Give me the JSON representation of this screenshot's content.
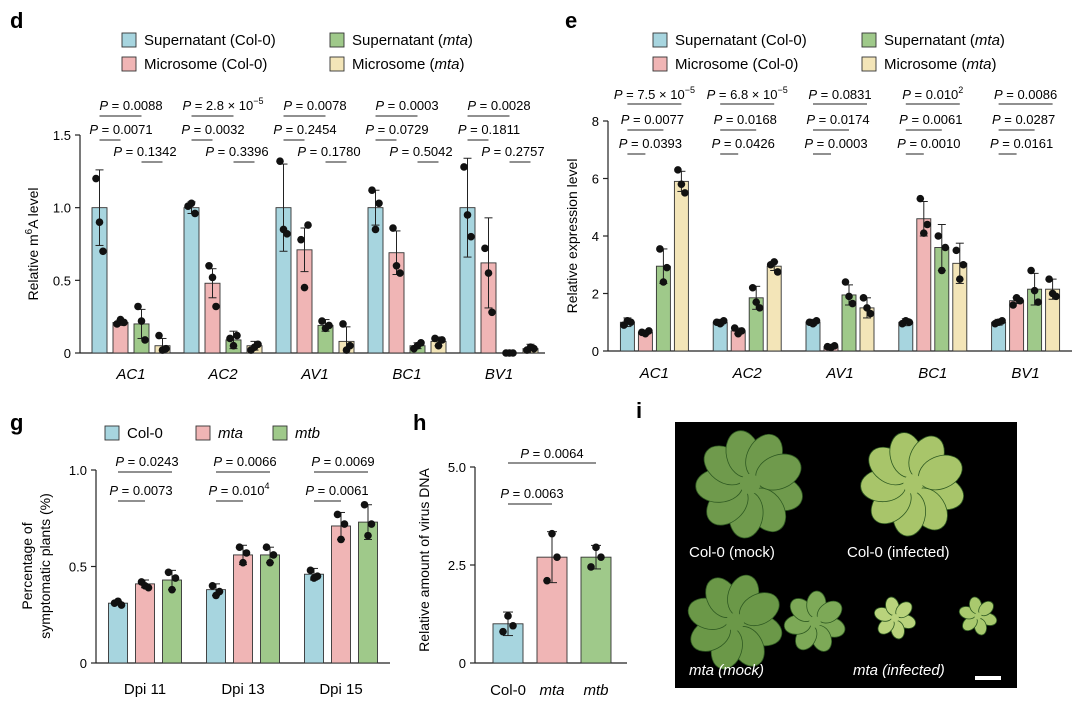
{
  "colors": {
    "supernatant_col0": "#a7d5df",
    "microsome_col0": "#f0b5b5",
    "supernatant_mta": "#9fc98a",
    "microsome_mta": "#f3e5b8",
    "col0": "#a7d5df",
    "mta": "#f0b5b5",
    "mtb": "#9fc98a",
    "photo_background": "#000000"
  },
  "chart_data": [
    {
      "panel": "d",
      "type": "bar",
      "ylabel": "Relative m6A level",
      "ylim": [
        0,
        1.5
      ],
      "yticks": [
        "0",
        "0.5",
        "1.0",
        "1.5"
      ],
      "categories": [
        "AC1",
        "AC2",
        "AV1",
        "BC1",
        "BV1"
      ],
      "legend": [
        "Supernatant (Col-0)",
        "Supernatant (mta)",
        "Microsome (Col-0)",
        "Microsome (mta)"
      ],
      "series": [
        {
          "name": "Supernatant (Col-0)",
          "values": [
            1.0,
            1.0,
            1.0,
            1.0,
            1.0
          ],
          "err": [
            0.26,
            0.04,
            0.3,
            0.12,
            0.34
          ],
          "points": [
            [
              1.2,
              0.9,
              0.7
            ],
            [
              1.01,
              1.03,
              0.96
            ],
            [
              1.32,
              0.85,
              0.82
            ],
            [
              1.12,
              0.85,
              1.03
            ],
            [
              1.28,
              0.95,
              0.8
            ]
          ]
        },
        {
          "name": "Microsome (Col-0)",
          "values": [
            0.21,
            0.48,
            0.71,
            0.69,
            0.62
          ],
          "err": [
            0.02,
            0.1,
            0.15,
            0.15,
            0.31
          ],
          "points": [
            [
              0.2,
              0.23,
              0.21
            ],
            [
              0.6,
              0.52,
              0.32
            ],
            [
              0.78,
              0.45,
              0.88
            ],
            [
              0.86,
              0.6,
              0.55
            ],
            [
              0.72,
              0.55,
              0.28
            ]
          ]
        },
        {
          "name": "Supernatant (mta)",
          "values": [
            0.2,
            0.09,
            0.19,
            0.05,
            0.0
          ],
          "err": [
            0.1,
            0.06,
            0.04,
            0.02,
            0.0
          ],
          "points": [
            [
              0.32,
              0.22,
              0.09
            ],
            [
              0.1,
              0.05,
              0.12
            ],
            [
              0.22,
              0.17,
              0.19
            ],
            [
              0.03,
              0.05,
              0.07
            ],
            [
              0.0,
              0.0,
              0.0
            ]
          ]
        },
        {
          "name": "Microsome (mta)",
          "values": [
            0.05,
            0.05,
            0.08,
            0.08,
            0.03
          ],
          "err": [
            0.05,
            0.03,
            0.1,
            0.03,
            0.03
          ],
          "points": [
            [
              0.12,
              0.02,
              0.03
            ],
            [
              0.02,
              0.04,
              0.06
            ],
            [
              0.2,
              0.02,
              0.05
            ],
            [
              0.1,
              0.05,
              0.09
            ],
            [
              0.02,
              0.04,
              0.03
            ]
          ]
        }
      ],
      "annotations": [
        [
          "P = 0.0088",
          "P = 0.0071",
          "P = 0.1342"
        ],
        [
          "P = 2.8 × 10⁻⁵",
          "P = 0.0032",
          "P = 0.3396"
        ],
        [
          "P = 0.0078",
          "P = 0.2454",
          "P = 0.1780"
        ],
        [
          "P = 0.0003",
          "P = 0.0729",
          "P = 0.5042"
        ],
        [
          "P = 0.0028",
          "P = 0.1811",
          "P = 0.2757"
        ]
      ]
    },
    {
      "panel": "e",
      "type": "bar",
      "ylabel": "Relative expression level",
      "ylim": [
        0,
        8
      ],
      "yticks": [
        "0",
        "2",
        "4",
        "6",
        "8"
      ],
      "categories": [
        "AC1",
        "AC2",
        "AV1",
        "BC1",
        "BV1"
      ],
      "legend": [
        "Supernatant (Col-0)",
        "Supernatant (mta)",
        "Microsome (Col-0)",
        "Microsome (mta)"
      ],
      "series": [
        {
          "name": "Supernatant (Col-0)",
          "values": [
            1.0,
            1.0,
            1.0,
            1.0,
            1.0
          ],
          "err": [
            0.15,
            0.1,
            0.1,
            0.12,
            0.1
          ],
          "points": [
            [
              0.9,
              1.05,
              1.0
            ],
            [
              1.0,
              0.95,
              1.05
            ],
            [
              1.0,
              0.95,
              1.05
            ],
            [
              0.95,
              1.05,
              1.0
            ],
            [
              0.95,
              1.0,
              1.05
            ]
          ]
        },
        {
          "name": "Microsome (Col-0)",
          "values": [
            0.65,
            0.7,
            0.15,
            4.6,
            1.75
          ],
          "err": [
            0.08,
            0.1,
            0.05,
            0.6,
            0.1
          ],
          "points": [
            [
              0.65,
              0.6,
              0.7
            ],
            [
              0.8,
              0.6,
              0.7
            ],
            [
              0.15,
              0.12,
              0.18
            ],
            [
              5.3,
              4.1,
              4.4
            ],
            [
              1.6,
              1.85,
              1.75
            ]
          ]
        },
        {
          "name": "Supernatant (mta)",
          "values": [
            2.95,
            1.85,
            1.95,
            3.6,
            2.15
          ],
          "err": [
            0.6,
            0.4,
            0.35,
            0.8,
            0.55
          ],
          "points": [
            [
              3.55,
              2.4,
              2.9
            ],
            [
              2.2,
              1.7,
              1.5
            ],
            [
              2.4,
              1.9,
              1.65
            ],
            [
              4.0,
              2.8,
              3.6
            ],
            [
              2.8,
              2.1,
              1.7
            ]
          ]
        },
        {
          "name": "Microsome (mta)",
          "values": [
            5.9,
            2.95,
            1.5,
            3.05,
            2.15
          ],
          "err": [
            0.35,
            0.15,
            0.35,
            0.7,
            0.35
          ],
          "points": [
            [
              6.3,
              5.8,
              5.5
            ],
            [
              3.0,
              3.1,
              2.75
            ],
            [
              1.85,
              1.5,
              1.3
            ],
            [
              3.5,
              2.5,
              3.0
            ],
            [
              2.5,
              2.0,
              1.9
            ]
          ]
        }
      ],
      "annotations": [
        [
          "P = 7.5 × 10⁻⁵",
          "P = 0.0077",
          "P = 0.0393"
        ],
        [
          "P = 6.8 × 10⁻⁵",
          "P = 0.0168",
          "P = 0.0426"
        ],
        [
          "P = 0.0831",
          "P = 0.0174",
          "P = 0.0003"
        ],
        [
          "P = 0.0102",
          "P = 0.0061",
          "P = 0.0010"
        ],
        [
          "P = 0.0086",
          "P = 0.0287",
          "P = 0.0161"
        ]
      ]
    },
    {
      "panel": "g",
      "type": "bar",
      "ylabel": "Percentage of symptomatic plants (%)",
      "ylabel_lines": [
        "Percentage of",
        "symptomatic plants (%)"
      ],
      "ylim": [
        0,
        1.0
      ],
      "yticks": [
        "0",
        "0.5",
        "1.0"
      ],
      "categories": [
        "Dpi 11",
        "Dpi 13",
        "Dpi 15"
      ],
      "legend": [
        "Col-0",
        "mta",
        "mtb"
      ],
      "series": [
        {
          "name": "Col-0",
          "values": [
            0.31,
            0.38,
            0.46
          ],
          "err": [
            0.01,
            0.03,
            0.03
          ],
          "points": [
            [
              0.31,
              0.32,
              0.3
            ],
            [
              0.4,
              0.35,
              0.37
            ],
            [
              0.48,
              0.44,
              0.45
            ]
          ]
        },
        {
          "name": "mta",
          "values": [
            0.41,
            0.56,
            0.71
          ],
          "err": [
            0.02,
            0.05,
            0.07
          ],
          "points": [
            [
              0.42,
              0.4,
              0.39
            ],
            [
              0.6,
              0.52,
              0.57
            ],
            [
              0.77,
              0.64,
              0.72
            ]
          ]
        },
        {
          "name": "mtb",
          "values": [
            0.43,
            0.56,
            0.73
          ],
          "err": [
            0.05,
            0.04,
            0.09
          ],
          "points": [
            [
              0.47,
              0.38,
              0.44
            ],
            [
              0.6,
              0.52,
              0.56
            ],
            [
              0.82,
              0.66,
              0.72
            ]
          ]
        }
      ],
      "annotations": [
        [
          "P = 0.0243",
          "P = 0.0073"
        ],
        [
          "P = 0.0066",
          "P = 0.0104"
        ],
        [
          "P = 0.0069",
          "P = 0.0061"
        ]
      ]
    },
    {
      "panel": "h",
      "type": "bar",
      "ylabel": "Relative amount of virus DNA",
      "ylim": [
        0,
        5.0
      ],
      "yticks": [
        "0",
        "2.5",
        "5.0"
      ],
      "categories": [
        "Col-0",
        "mta",
        "mtb"
      ],
      "series": [
        {
          "name": "",
          "values": [
            1.0,
            2.7,
            2.7
          ],
          "err": [
            0.3,
            0.65,
            0.3
          ],
          "points": [
            [
              1.2,
              0.8,
              0.95
            ],
            [
              3.3,
              2.1,
              2.7
            ],
            [
              2.95,
              2.45,
              2.7
            ]
          ]
        }
      ],
      "annotations": [
        "P = 0.0063",
        "P = 0.0064"
      ]
    }
  ],
  "panels": {
    "d": "d",
    "e": "e",
    "g": "g",
    "h": "h",
    "i": "i"
  },
  "photo": {
    "labels": [
      "Col-0 (mock)",
      "Col-0 (infected)",
      "mta (mock)",
      "mta (infected)"
    ]
  }
}
